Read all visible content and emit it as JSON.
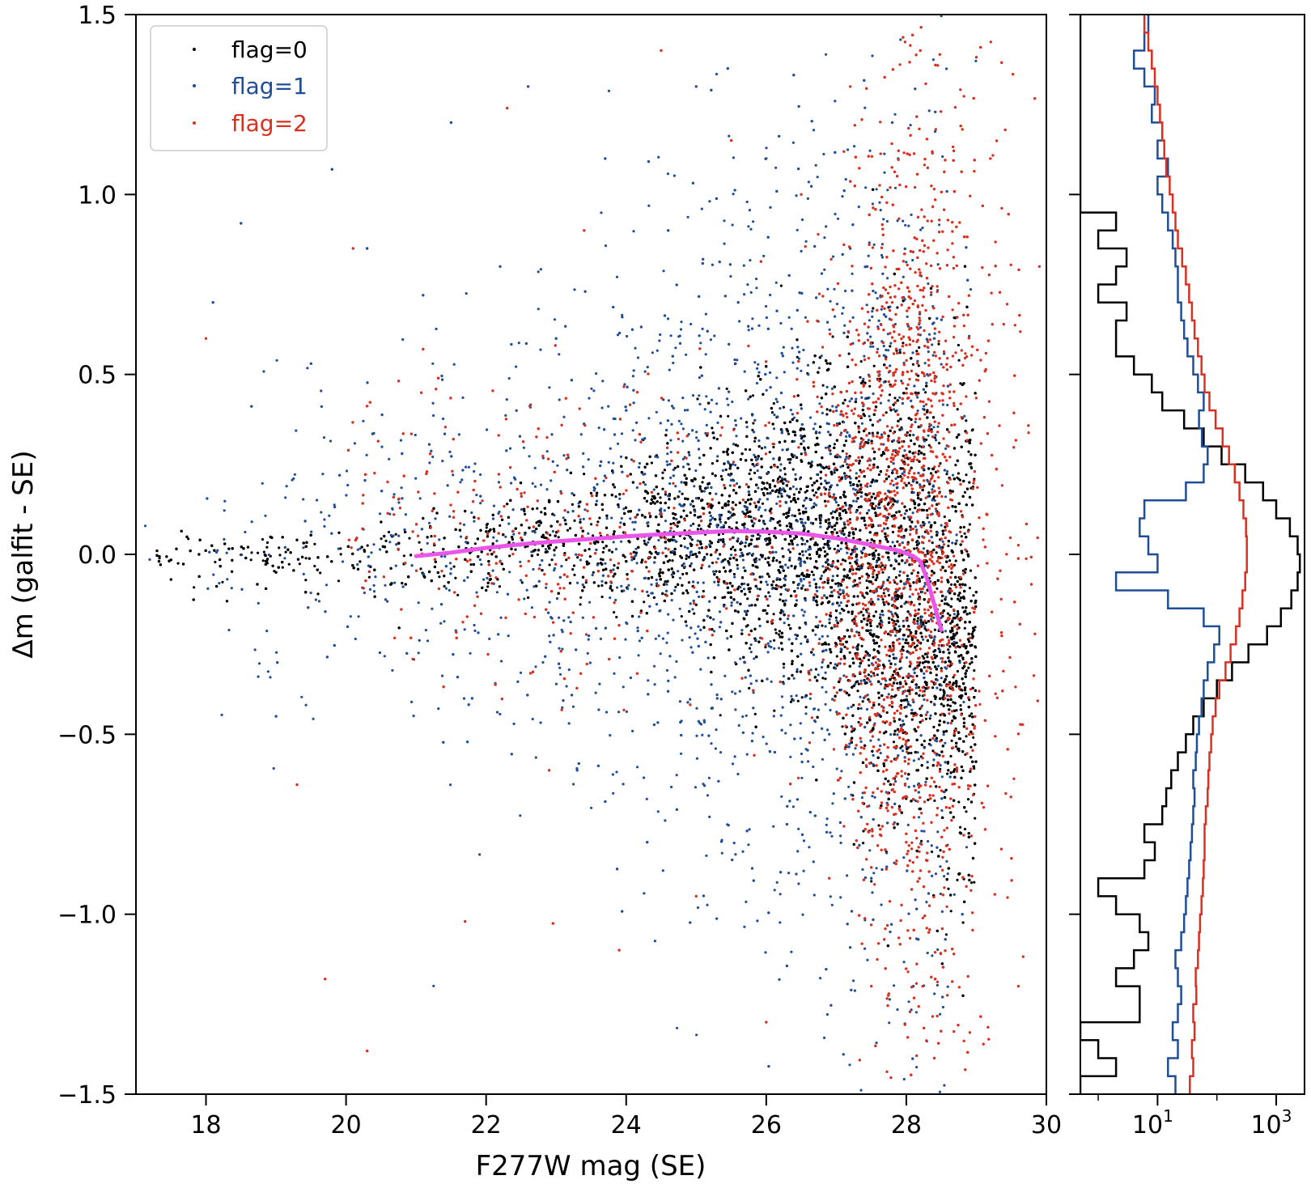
{
  "chart_data": [
    {
      "type": "scatter",
      "panel": "main",
      "title": "",
      "xlabel": "F277W mag (SE)",
      "ylabel": "Δm (galfit - SE)",
      "xlim": [
        17,
        30
      ],
      "ylim": [
        -1.5,
        1.5
      ],
      "xticks": [
        18,
        20,
        22,
        24,
        26,
        28,
        30
      ],
      "xtick_labels": [
        "18",
        "20",
        "22",
        "24",
        "26",
        "28",
        "30"
      ],
      "yticks": [
        -1.5,
        -1.0,
        -0.5,
        0.0,
        0.5,
        1.0,
        1.5
      ],
      "ytick_labels": [
        "−1.5",
        "−1.0",
        "−0.5",
        "0.0",
        "0.5",
        "1.0",
        "1.5"
      ],
      "grid": false,
      "legend": {
        "placement": "top-left",
        "entries": [
          {
            "label": "flag=0",
            "color": "#000000"
          },
          {
            "label": "flag=1",
            "color": "#1f4e96"
          },
          {
            "label": "flag=2",
            "color": "#d9301f"
          }
        ]
      },
      "series": [
        {
          "name": "flag=0",
          "color": "#000000",
          "distribution": "dense cloud centered near Δm≈0.05, spread widening toward faint magnitudes",
          "x_range": [
            17.3,
            29.0
          ],
          "points": [
            [
              17.3,
              0.01
            ],
            [
              17.5,
              -0.07
            ],
            [
              17.9,
              0.0
            ],
            [
              18.3,
              -0.13
            ],
            [
              18.6,
              0.02
            ],
            [
              19.0,
              -0.05
            ],
            [
              19.3,
              0.04
            ],
            [
              19.6,
              -0.11
            ],
            [
              19.9,
              0.06
            ],
            [
              20.2,
              -0.02
            ],
            [
              20.5,
              0.09
            ],
            [
              20.8,
              -0.08
            ],
            [
              21.1,
              0.1
            ],
            [
              21.4,
              -0.06
            ],
            [
              21.7,
              0.12
            ],
            [
              22.0,
              -0.1
            ],
            [
              22.3,
              0.14
            ],
            [
              22.6,
              -0.12
            ],
            [
              22.9,
              0.15
            ],
            [
              23.2,
              -0.08
            ],
            [
              23.5,
              0.17
            ],
            [
              23.8,
              -0.1
            ],
            [
              24.1,
              0.2
            ],
            [
              24.4,
              -0.12
            ],
            [
              24.7,
              0.24
            ],
            [
              25.0,
              -0.14
            ],
            [
              25.3,
              0.26
            ],
            [
              25.6,
              -0.16
            ],
            [
              25.9,
              0.3
            ],
            [
              26.2,
              -0.18
            ],
            [
              26.5,
              0.35
            ],
            [
              26.8,
              -0.25
            ],
            [
              27.1,
              0.42
            ],
            [
              27.4,
              -0.35
            ],
            [
              27.7,
              0.48
            ],
            [
              28.0,
              -0.45
            ],
            [
              28.3,
              0.4
            ],
            [
              28.6,
              -0.6
            ],
            [
              28.9,
              0.2
            ]
          ]
        },
        {
          "name": "flag=1",
          "color": "#1f4e96",
          "distribution": "sparse points scattered widely above and below zero",
          "x_range": [
            17.8,
            29.0
          ],
          "points": [
            [
              18.1,
              0.7
            ],
            [
              18.5,
              0.92
            ],
            [
              19.0,
              -0.45
            ],
            [
              19.5,
              0.53
            ],
            [
              19.8,
              1.07
            ],
            [
              20.3,
              0.85
            ],
            [
              20.8,
              0.28
            ],
            [
              21.1,
              0.72
            ],
            [
              21.5,
              1.2
            ],
            [
              21.8,
              -0.4
            ],
            [
              22.2,
              0.8
            ],
            [
              22.6,
              1.3
            ],
            [
              23.0,
              0.6
            ],
            [
              23.3,
              -0.6
            ],
            [
              23.7,
              1.1
            ],
            [
              24.0,
              0.4
            ],
            [
              24.3,
              -0.8
            ],
            [
              24.6,
              0.9
            ],
            [
              25.0,
              1.3
            ],
            [
              25.3,
              -0.4
            ],
            [
              25.6,
              0.7
            ],
            [
              26.0,
              1.1
            ],
            [
              26.3,
              -0.7
            ],
            [
              26.6,
              0.5
            ],
            [
              26.9,
              -0.5
            ],
            [
              27.2,
              0.85
            ],
            [
              27.5,
              -0.9
            ],
            [
              27.8,
              1.2
            ],
            [
              28.1,
              -1.2
            ],
            [
              28.4,
              0.6
            ],
            [
              28.8,
              -1.0
            ]
          ]
        },
        {
          "name": "flag=2",
          "color": "#d9301f",
          "distribution": "concentrated at faint magnitudes (27–29), filling full Δm range",
          "x_range": [
            17.8,
            30.0
          ],
          "points": [
            [
              18.0,
              0.6
            ],
            [
              19.3,
              -0.64
            ],
            [
              19.7,
              -1.18
            ],
            [
              20.1,
              0.85
            ],
            [
              20.3,
              -1.38
            ],
            [
              21.1,
              0.57
            ],
            [
              21.7,
              -1.02
            ],
            [
              22.3,
              1.24
            ],
            [
              22.9,
              -0.6
            ],
            [
              23.4,
              0.9
            ],
            [
              23.9,
              -1.1
            ],
            [
              24.5,
              1.4
            ],
            [
              25.0,
              -0.95
            ],
            [
              25.5,
              1.15
            ],
            [
              26.0,
              -1.3
            ],
            [
              26.5,
              1.0
            ],
            [
              26.9,
              -0.9
            ],
            [
              27.2,
              1.3
            ],
            [
              27.5,
              -1.2
            ],
            [
              27.8,
              0.7
            ],
            [
              28.0,
              -0.8
            ],
            [
              28.2,
              1.4
            ],
            [
              28.4,
              -1.4
            ],
            [
              28.6,
              0.3
            ],
            [
              28.9,
              -0.5
            ],
            [
              29.2,
              1.1
            ],
            [
              29.6,
              -1.2
            ],
            [
              29.9,
              0.8
            ]
          ]
        },
        {
          "name": "",
          "type": "line",
          "color": "#ea55ea",
          "x": [
            21.0,
            21.5,
            22.0,
            22.5,
            23.0,
            23.5,
            24.0,
            24.5,
            25.0,
            25.5,
            26.0,
            26.5,
            27.0,
            27.4,
            27.7,
            27.9,
            28.1,
            28.2,
            28.3,
            28.4,
            28.5
          ],
          "values": [
            -0.005,
            0.005,
            0.018,
            0.028,
            0.036,
            0.043,
            0.05,
            0.056,
            0.06,
            0.065,
            0.063,
            0.058,
            0.045,
            0.03,
            0.018,
            0.01,
            -0.005,
            -0.02,
            -0.07,
            -0.14,
            -0.21
          ]
        }
      ]
    },
    {
      "type": "line",
      "panel": "histogram",
      "orientation": "horizontal",
      "title": "",
      "xlabel": "",
      "ylabel": "",
      "xscale": "log",
      "xlim": [
        0.5,
        3000
      ],
      "ylim": [
        -1.5,
        1.5
      ],
      "xticks": [
        10,
        1000
      ],
      "xtick_labels": [
        {
          "base": "10",
          "exp": "1"
        },
        {
          "base": "10",
          "exp": "3"
        }
      ],
      "bin_edges": [
        -1.5,
        -1.45,
        -1.4,
        -1.35,
        -1.3,
        -1.25,
        -1.2,
        -1.15,
        -1.1,
        -1.05,
        -1.0,
        -0.95,
        -0.9,
        -0.85,
        -0.8,
        -0.75,
        -0.7,
        -0.65,
        -0.6,
        -0.55,
        -0.5,
        -0.45,
        -0.4,
        -0.35,
        -0.3,
        -0.25,
        -0.2,
        -0.15,
        -0.1,
        -0.05,
        0.0,
        0.05,
        0.1,
        0.15,
        0.2,
        0.25,
        0.3,
        0.35,
        0.4,
        0.45,
        0.5,
        0.55,
        0.6,
        0.65,
        0.7,
        0.75,
        0.8,
        0.85,
        0.9,
        0.95,
        1.0,
        1.05,
        1.1,
        1.15,
        1.2,
        1.25,
        1.3,
        1.35,
        1.4,
        1.45,
        1.5
      ],
      "series": [
        {
          "name": "flag=0",
          "color": "#000000",
          "counts": [
            0,
            2,
            1,
            0,
            5,
            5,
            2,
            4,
            7,
            5,
            2,
            1,
            6,
            9,
            6,
            12,
            14,
            17,
            22,
            30,
            40,
            60,
            100,
            180,
            340,
            700,
            1200,
            1800,
            2300,
            2500,
            2300,
            1700,
            1000,
            600,
            300,
            120,
            60,
            28,
            12,
            8,
            4,
            2,
            2,
            3,
            1,
            2,
            3,
            1,
            2,
            0,
            0,
            0,
            0,
            0,
            0,
            0,
            0,
            0,
            0,
            0
          ]
        },
        {
          "name": "flag=1",
          "color": "#1f4e96",
          "counts": [
            20,
            15,
            22,
            18,
            22,
            25,
            22,
            20,
            25,
            28,
            30,
            32,
            34,
            36,
            38,
            40,
            42,
            40,
            44,
            46,
            50,
            55,
            60,
            70,
            90,
            110,
            60,
            15,
            2,
            10,
            7,
            5,
            6,
            30,
            60,
            70,
            56,
            50,
            60,
            48,
            40,
            32,
            28,
            25,
            22,
            22,
            20,
            18,
            15,
            12,
            10,
            15,
            10,
            12,
            8,
            9,
            6,
            4,
            6,
            7
          ]
        },
        {
          "name": "flag=2",
          "color": "#d9301f",
          "counts": [
            35,
            40,
            38,
            42,
            40,
            45,
            44,
            48,
            50,
            52,
            55,
            58,
            60,
            62,
            62,
            65,
            70,
            72,
            75,
            80,
            85,
            95,
            110,
            140,
            170,
            210,
            240,
            270,
            300,
            320,
            320,
            310,
            280,
            240,
            200,
            160,
            125,
            95,
            75,
            62,
            55,
            48,
            42,
            38,
            34,
            30,
            26,
            22,
            20,
            18,
            16,
            14,
            13,
            12,
            11,
            10,
            9,
            8,
            7,
            6
          ]
        }
      ]
    }
  ]
}
